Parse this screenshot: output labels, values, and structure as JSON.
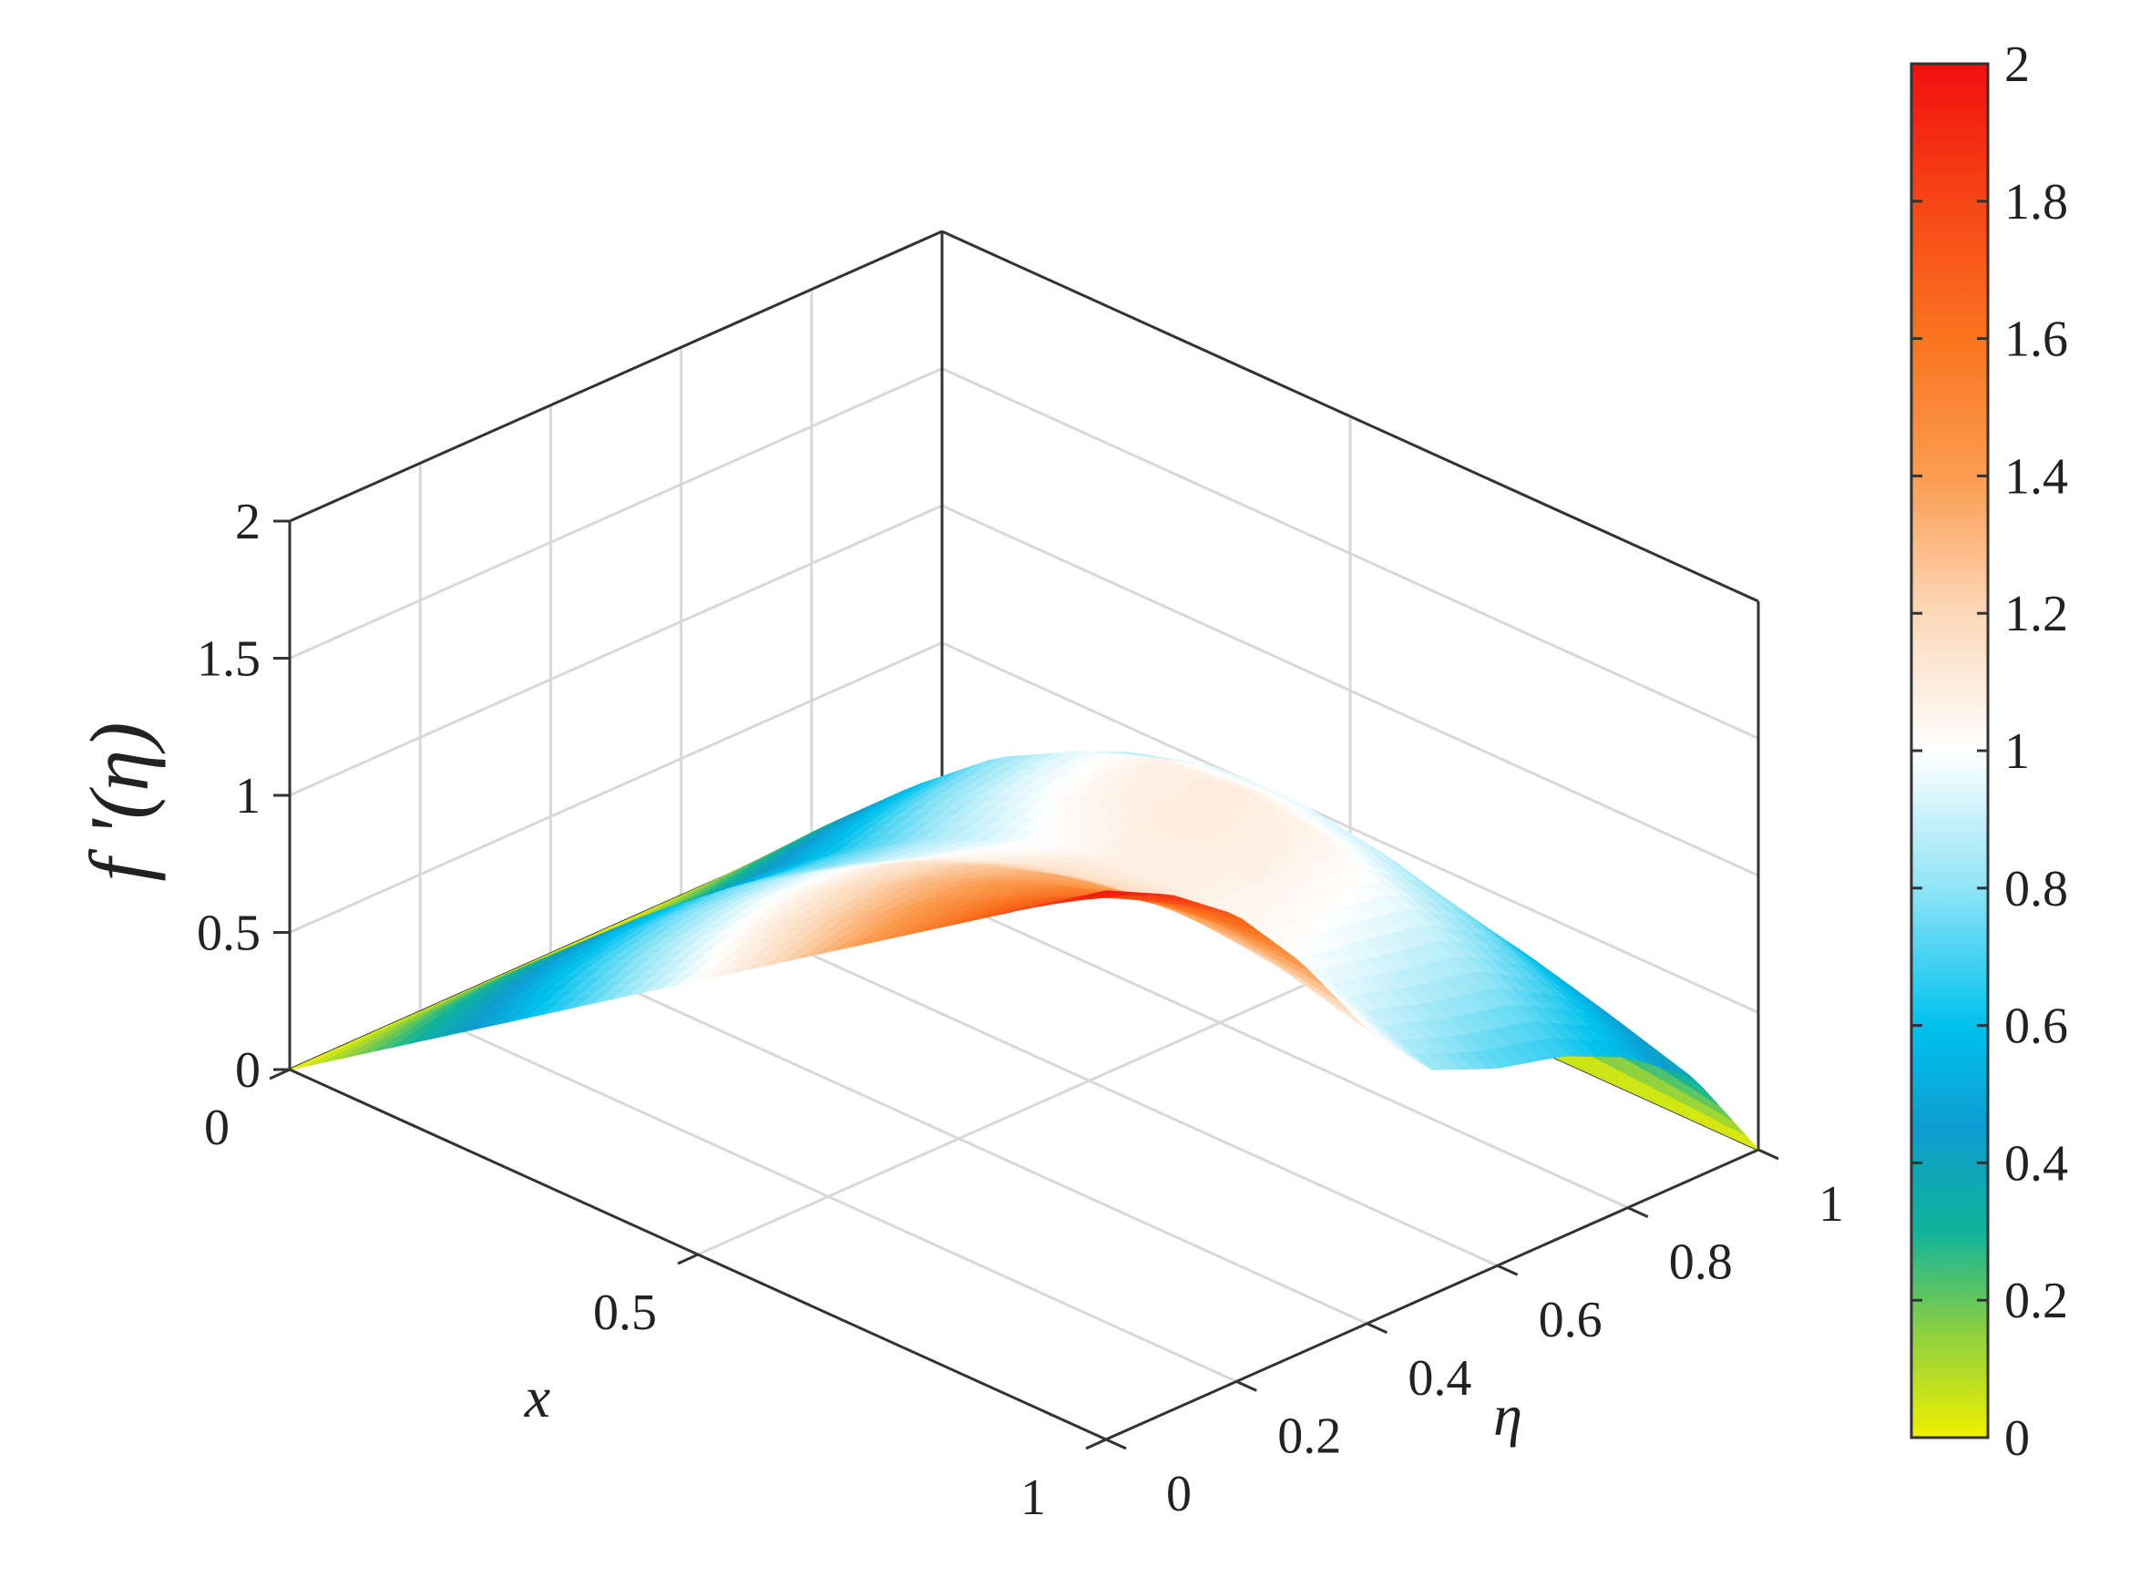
{
  "chart_data": {
    "type": "surface",
    "xlabel": "x",
    "ylabel": "η",
    "zlabel": "f '(η)",
    "xlim": [
      0,
      1
    ],
    "ylim": [
      0,
      1
    ],
    "zlim": [
      0,
      2
    ],
    "grid": true,
    "x_ticks": [
      {
        "value": 0,
        "label": "0"
      },
      {
        "value": 0.5,
        "label": "0.5"
      },
      {
        "value": 1,
        "label": "1"
      }
    ],
    "y_ticks": [
      {
        "value": 0,
        "label": "0"
      },
      {
        "value": 0.2,
        "label": "0.2"
      },
      {
        "value": 0.4,
        "label": "0.4"
      },
      {
        "value": 0.6,
        "label": "0.6"
      },
      {
        "value": 0.8,
        "label": "0.8"
      },
      {
        "value": 1,
        "label": "1"
      }
    ],
    "z_ticks": [
      {
        "value": 0,
        "label": "0"
      },
      {
        "value": 0.5,
        "label": "0.5"
      },
      {
        "value": 1,
        "label": "1"
      },
      {
        "value": 1.5,
        "label": "1.5"
      },
      {
        "value": 2,
        "label": "2"
      }
    ],
    "colorbar": {
      "range": [
        0,
        2
      ],
      "ticks": [
        {
          "value": 0,
          "label": "0"
        },
        {
          "value": 0.2,
          "label": "0.2"
        },
        {
          "value": 0.4,
          "label": "0.4"
        },
        {
          "value": 0.6,
          "label": "0.6"
        },
        {
          "value": 0.8,
          "label": "0.8"
        },
        {
          "value": 1,
          "label": "1"
        },
        {
          "value": 1.2,
          "label": "1.2"
        },
        {
          "value": 1.4,
          "label": "1.4"
        },
        {
          "value": 1.6,
          "label": "1.6"
        },
        {
          "value": 1.8,
          "label": "1.8"
        },
        {
          "value": 2,
          "label": "2"
        }
      ],
      "colormap": [
        {
          "value": 0,
          "color": "#f0f000"
        },
        {
          "value": 0.15,
          "color": "#8fd13f"
        },
        {
          "value": 0.3,
          "color": "#10b39a"
        },
        {
          "value": 0.45,
          "color": "#0e9cd0"
        },
        {
          "value": 0.6,
          "color": "#00c2ee"
        },
        {
          "value": 0.8,
          "color": "#8fe4f6"
        },
        {
          "value": 1.0,
          "color": "#ffffff"
        },
        {
          "value": 1.2,
          "color": "#fcd8b8"
        },
        {
          "value": 1.4,
          "color": "#fb9c50"
        },
        {
          "value": 1.6,
          "color": "#fa7420"
        },
        {
          "value": 1.8,
          "color": "#f64515"
        },
        {
          "value": 2.0,
          "color": "#f20f0f"
        }
      ]
    },
    "surface": {
      "x_samples": [
        0,
        0.1,
        0.2,
        0.3,
        0.4,
        0.5,
        0.6,
        0.7,
        0.8,
        0.9,
        1
      ],
      "y_samples": [
        0,
        0.1,
        0.2,
        0.3,
        0.4,
        0.5,
        0.6,
        0.7,
        0.8,
        0.9,
        1
      ],
      "z": [
        [
          0,
          0,
          0,
          0,
          0,
          0,
          0,
          0,
          0,
          0,
          0
        ],
        [
          0.2,
          0.24,
          0.26,
          0.26,
          0.24,
          0.24,
          0.27,
          0.29,
          0.27,
          0.2,
          0
        ],
        [
          0.4,
          0.47,
          0.51,
          0.52,
          0.49,
          0.48,
          0.53,
          0.56,
          0.51,
          0.36,
          0
        ],
        [
          0.6,
          0.69,
          0.74,
          0.75,
          0.71,
          0.69,
          0.76,
          0.8,
          0.71,
          0.5,
          0
        ],
        [
          0.8,
          0.89,
          0.94,
          0.94,
          0.88,
          0.86,
          0.93,
          0.96,
          0.85,
          0.59,
          0
        ],
        [
          1.0,
          1.08,
          1.12,
          1.11,
          1.03,
          0.98,
          1.05,
          1.07,
          0.93,
          0.64,
          0
        ],
        [
          1.2,
          1.26,
          1.28,
          1.24,
          1.13,
          1.06,
          1.1,
          1.1,
          0.94,
          0.64,
          0
        ],
        [
          1.4,
          1.43,
          1.41,
          1.34,
          1.18,
          1.07,
          1.08,
          1.06,
          0.89,
          0.6,
          0
        ],
        [
          1.6,
          1.59,
          1.53,
          1.4,
          1.19,
          1.03,
          1.0,
          0.96,
          0.8,
          0.54,
          0
        ],
        [
          1.8,
          1.74,
          1.62,
          1.43,
          1.15,
          0.94,
          0.87,
          0.82,
          0.68,
          0.46,
          0
        ],
        [
          2.0,
          1.88,
          1.7,
          1.42,
          1.07,
          0.82,
          0.72,
          0.66,
          0.55,
          0.37,
          0
        ]
      ]
    }
  }
}
